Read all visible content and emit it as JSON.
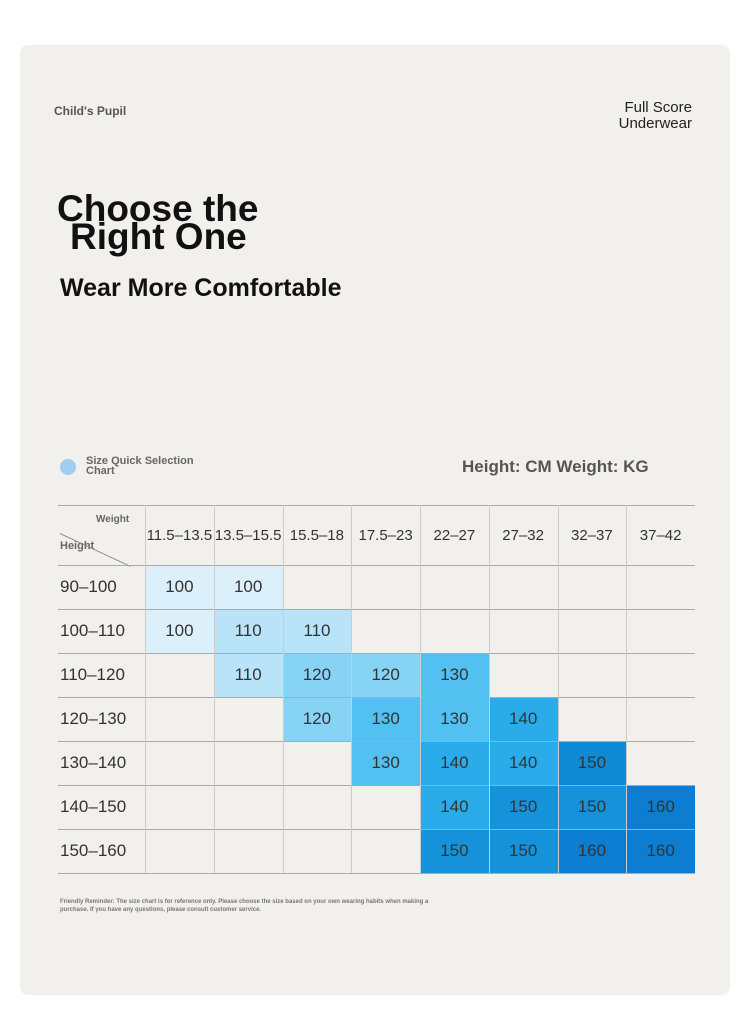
{
  "header": {
    "brand": "Child's Pupil",
    "store_lines": [
      "Full Score",
      "Underwear"
    ]
  },
  "hero": {
    "title_lines": [
      "Choose the",
      "Right One"
    ],
    "subtitle": "Wear More Comfortable"
  },
  "chart": {
    "label": "Size Quick Selection Chart",
    "units": "Height: CM Weight: KG"
  },
  "table": {
    "corner_top": "Weight",
    "corner_bottom": "Height",
    "columns": [
      "11.5–13.5",
      "13.5–15.5",
      "15.5–18",
      "17.5–23",
      "22–27",
      "27–32",
      "32–37",
      "37–42"
    ],
    "rows": [
      {
        "label": "90–100",
        "cells": [
          {
            "text": "100",
            "color": "#dcf0fb"
          },
          {
            "text": "100",
            "color": "#dcf0fb"
          },
          null,
          null,
          null,
          null,
          null,
          null
        ]
      },
      {
        "label": "100–110",
        "cells": [
          {
            "text": "100",
            "color": "#dcf0fb"
          },
          {
            "text": "110",
            "color": "#b9e3f8"
          },
          {
            "text": "110",
            "color": "#b9e3f8"
          },
          null,
          null,
          null,
          null,
          null
        ]
      },
      {
        "label": "110–120",
        "cells": [
          null,
          {
            "text": "110",
            "color": "#b9e3f8"
          },
          {
            "text": "120",
            "color": "#86d3f6"
          },
          {
            "text": "120",
            "color": "#86d3f6"
          },
          {
            "text": "130",
            "color": "#52c0f1"
          },
          null,
          null,
          null
        ]
      },
      {
        "label": "120–130",
        "cells": [
          null,
          null,
          {
            "text": "120",
            "color": "#86d3f6"
          },
          {
            "text": "130",
            "color": "#52c0f1"
          },
          {
            "text": "130",
            "color": "#52c0f1"
          },
          {
            "text": "140",
            "color": "#2aaceb"
          },
          null,
          null
        ]
      },
      {
        "label": "130–140",
        "cells": [
          null,
          null,
          null,
          {
            "text": "130",
            "color": "#52c0f1"
          },
          {
            "text": "140",
            "color": "#2aaceb"
          },
          {
            "text": "140",
            "color": "#2aaceb"
          },
          {
            "text": "150",
            "color": "#118ad6"
          },
          null
        ]
      },
      {
        "label": "140–150",
        "cells": [
          null,
          null,
          null,
          null,
          {
            "text": "140",
            "color": "#2aaceb"
          },
          {
            "text": "150",
            "color": "#1592da"
          },
          {
            "text": "150",
            "color": "#1592da"
          },
          {
            "text": "160",
            "color": "#0c7dd0"
          }
        ]
      },
      {
        "label": "150–160",
        "cells": [
          null,
          null,
          null,
          null,
          {
            "text": "150",
            "color": "#1592da"
          },
          {
            "text": "150",
            "color": "#1592da"
          },
          {
            "text": "160",
            "color": "#0c7dd0"
          },
          {
            "text": "160",
            "color": "#0c7dd0"
          }
        ]
      }
    ]
  },
  "footer": {
    "note": "Friendly Reminder: The size chart is for reference only. Please choose the size based on your own wearing habits when making a purchase. If you have any questions, please consult customer service."
  }
}
